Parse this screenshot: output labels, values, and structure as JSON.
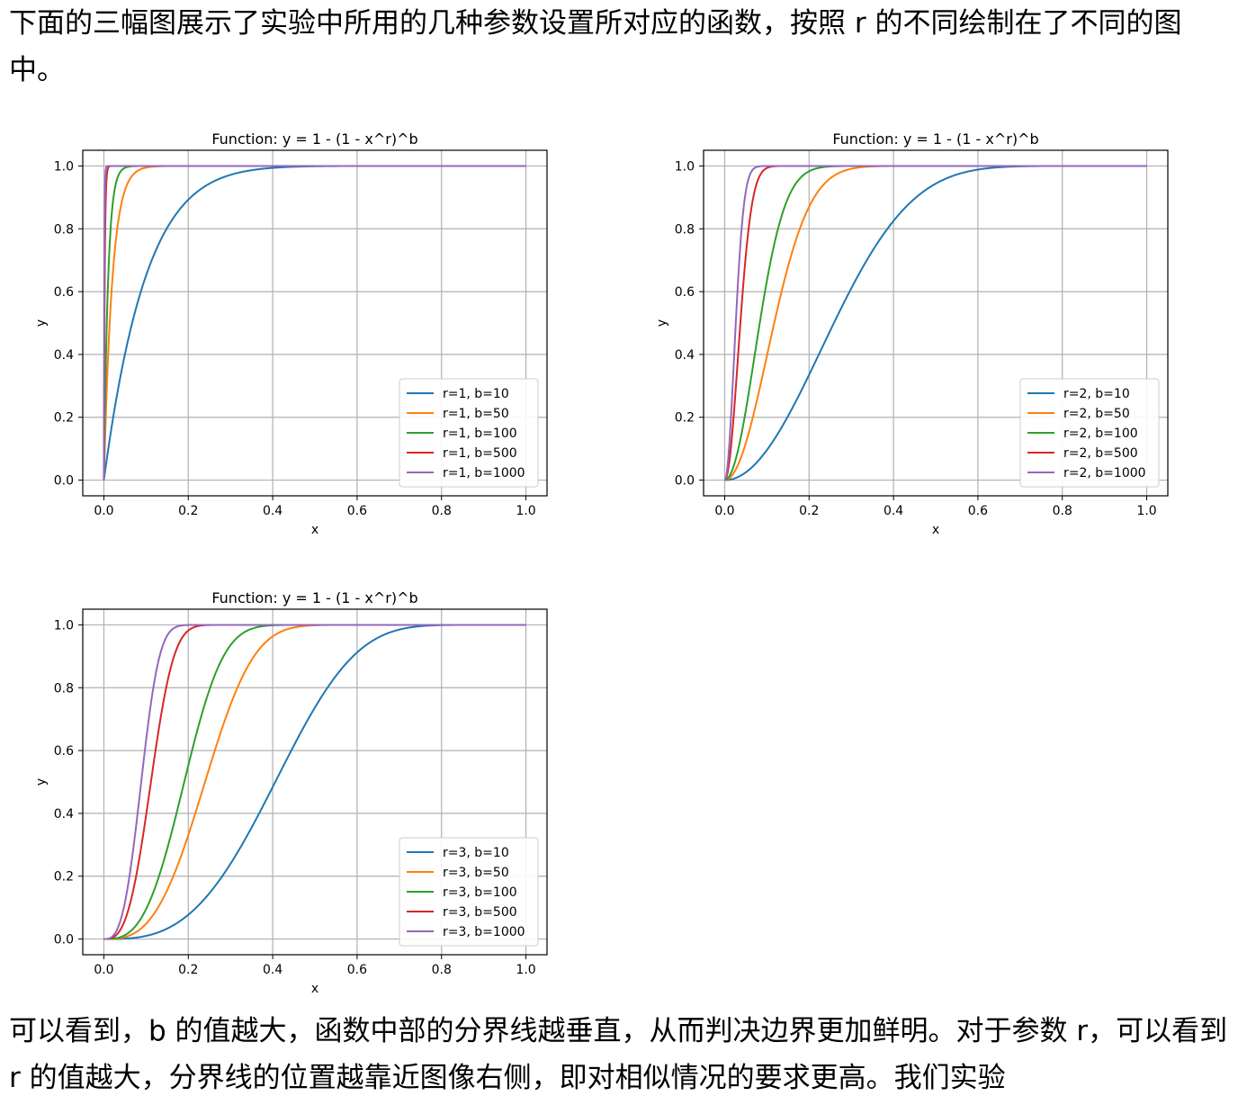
{
  "text": {
    "top_paragraph": "下面的三幅图展示了实验中所用的几种参数设置所对应的函数，按照 r 的不同绘制在了不同的图中。",
    "bottom_paragraph": "可以看到，b 的值越大，函数中部的分界线越垂直，从而判决边界更加鲜明。对于参数 r，可以看到 r 的值越大，分界线的位置越靠近图像右侧，即对相似情况的要求更高。我们实验"
  },
  "colors": {
    "b10": "#1f77b4",
    "b50": "#ff7f0e",
    "b100": "#2ca02c",
    "b500": "#d62728",
    "b1000": "#9467bd",
    "grid": "#b0b0b0"
  },
  "chart_data": [
    {
      "type": "line",
      "title": "Function: y = 1 - (1 - x^r)^b",
      "xlabel": "x",
      "ylabel": "y",
      "xlim": [
        -0.05,
        1.05
      ],
      "ylim": [
        -0.05,
        1.05
      ],
      "xticks": [
        "0.0",
        "0.2",
        "0.4",
        "0.6",
        "0.8",
        "1.0"
      ],
      "yticks": [
        "0.0",
        "0.2",
        "0.4",
        "0.6",
        "0.8",
        "1.0"
      ],
      "grid": true,
      "legend": "lower right",
      "r": 1,
      "series": [
        {
          "name": "r=1, b=10",
          "b": 10
        },
        {
          "name": "r=1, b=50",
          "b": 50
        },
        {
          "name": "r=1, b=100",
          "b": 100
        },
        {
          "name": "r=1, b=500",
          "b": 500
        },
        {
          "name": "r=1, b=1000",
          "b": 1000
        }
      ]
    },
    {
      "type": "line",
      "title": "Function: y = 1 - (1 - x^r)^b",
      "xlabel": "x",
      "ylabel": "y",
      "xlim": [
        -0.05,
        1.05
      ],
      "ylim": [
        -0.05,
        1.05
      ],
      "xticks": [
        "0.0",
        "0.2",
        "0.4",
        "0.6",
        "0.8",
        "1.0"
      ],
      "yticks": [
        "0.0",
        "0.2",
        "0.4",
        "0.6",
        "0.8",
        "1.0"
      ],
      "grid": true,
      "legend": "lower right",
      "r": 2,
      "series": [
        {
          "name": "r=2, b=10",
          "b": 10
        },
        {
          "name": "r=2, b=50",
          "b": 50
        },
        {
          "name": "r=2, b=100",
          "b": 100
        },
        {
          "name": "r=2, b=500",
          "b": 500
        },
        {
          "name": "r=2, b=1000",
          "b": 1000
        }
      ]
    },
    {
      "type": "line",
      "title": "Function: y = 1 - (1 - x^r)^b",
      "xlabel": "x",
      "ylabel": "y",
      "xlim": [
        -0.05,
        1.05
      ],
      "ylim": [
        -0.05,
        1.05
      ],
      "xticks": [
        "0.0",
        "0.2",
        "0.4",
        "0.6",
        "0.8",
        "1.0"
      ],
      "yticks": [
        "0.0",
        "0.2",
        "0.4",
        "0.6",
        "0.8",
        "1.0"
      ],
      "grid": true,
      "legend": "lower right",
      "r": 3,
      "series": [
        {
          "name": "r=3, b=10",
          "b": 10
        },
        {
          "name": "r=3, b=50",
          "b": 50
        },
        {
          "name": "r=3, b=100",
          "b": 100
        },
        {
          "name": "r=3, b=500",
          "b": 500
        },
        {
          "name": "r=3, b=1000",
          "b": 1000
        }
      ]
    }
  ]
}
